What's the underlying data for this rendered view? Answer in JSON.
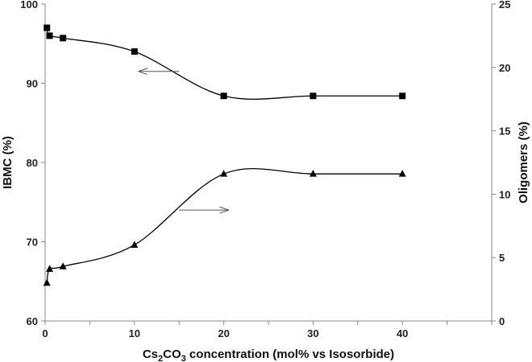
{
  "chart_data": {
    "type": "line",
    "x_axis": {
      "label_prefix": "Cs",
      "label_sub1": "2",
      "label_mid": "CO",
      "label_sub2": "3",
      "label_suffix": " concentration (mol% vs Isosorbide)",
      "range": [
        0,
        50
      ],
      "ticks": [
        0,
        10,
        20,
        30,
        40
      ]
    },
    "y_left": {
      "label": "IBMC (%)",
      "range": [
        60,
        100
      ],
      "ticks": [
        60,
        70,
        80,
        90,
        100
      ]
    },
    "y_right": {
      "label": "Oligomers (%)",
      "range": [
        0,
        25
      ],
      "ticks": [
        0,
        5,
        10,
        15,
        20,
        25
      ]
    },
    "series": [
      {
        "axis": "left",
        "marker": "square",
        "x": [
          0.2,
          0.5,
          2,
          10,
          20,
          30,
          40
        ],
        "y": [
          97.0,
          96.0,
          95.7,
          94.0,
          88.4,
          88.4,
          88.4
        ]
      },
      {
        "axis": "right",
        "marker": "triangle",
        "x": [
          0.2,
          0.5,
          2,
          10,
          20,
          30,
          40
        ],
        "y": [
          3.0,
          4.1,
          4.3,
          6.0,
          11.6,
          11.6,
          11.6
        ]
      }
    ],
    "annotations": [
      {
        "type": "arrow",
        "points_to": "left-axis",
        "from": [
          15,
          91.5
        ],
        "to": [
          10.5,
          91.5
        ]
      },
      {
        "type": "arrow",
        "points_to": "right-axis",
        "from": [
          15,
          74
        ],
        "to": [
          20.5,
          74
        ]
      }
    ],
    "grid": false,
    "colors": {
      "line": "#000000",
      "arrow": "#555555",
      "text": "#222222"
    }
  }
}
